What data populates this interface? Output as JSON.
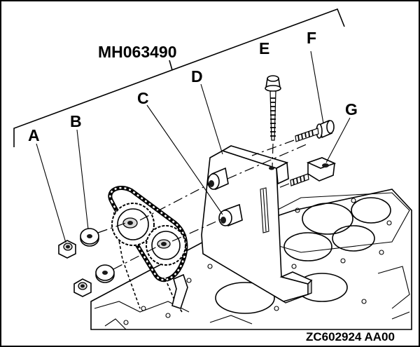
{
  "figure": {
    "tool_code": "MH063490",
    "figure_id": "ZC602924 AA00",
    "labels": {
      "a": "A",
      "b": "B",
      "c": "C",
      "d": "D",
      "e": "E",
      "f": "F",
      "g": "G"
    }
  }
}
